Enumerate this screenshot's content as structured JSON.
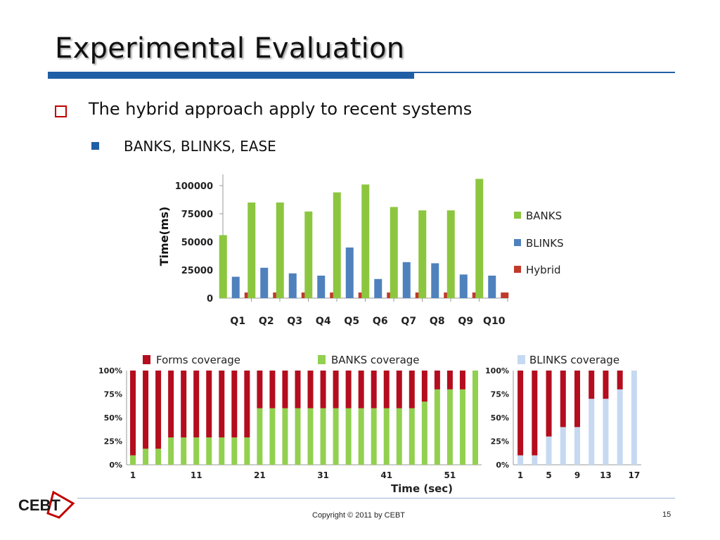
{
  "slide": {
    "title": "Experimental Evaluation",
    "bullet1": "The hybrid approach apply to recent systems",
    "bullet2": "BANKS, BLINKS, EASE",
    "logo_text": "CEBT",
    "copyright": "Copyright © 2011 by CEBT",
    "page_number": "15"
  },
  "colors": {
    "banks": "#8cc63f",
    "blinks": "#4f81bd",
    "hybrid": "#c0392b",
    "forms_coverage": "#b40d1e",
    "banks_coverage": "#92d050",
    "blinks_coverage": "#c6d9f1",
    "title_rule": "#1f5fa6"
  },
  "chart_data": [
    {
      "type": "bar",
      "ylabel": "Time(ms)",
      "ylim": [
        0,
        110000
      ],
      "yticks": [
        "0",
        "25000",
        "50000",
        "75000",
        "100000"
      ],
      "ytick_values": [
        0,
        25000,
        50000,
        75000,
        100000
      ],
      "categories": [
        "Q1",
        "Q2",
        "Q3",
        "Q4",
        "Q5",
        "Q6",
        "Q7",
        "Q8",
        "Q9",
        "Q10"
      ],
      "legend_position": "right",
      "series": [
        {
          "name": "BANKS",
          "values": [
            56000,
            85000,
            85000,
            77000,
            94000,
            101000,
            81000,
            78000,
            78000,
            106000
          ]
        },
        {
          "name": "BLINKS",
          "values": [
            19000,
            27000,
            22000,
            20000,
            45000,
            17000,
            32000,
            31000,
            21000,
            20000
          ]
        },
        {
          "name": "Hybrid",
          "values": [
            5000,
            5000,
            5000,
            5000,
            5000,
            5000,
            5000,
            5000,
            5000,
            5000
          ]
        }
      ]
    },
    {
      "type": "bar",
      "stacked": true,
      "xlabel": "Time (sec)",
      "ylim": [
        0,
        100
      ],
      "yticks": [
        "0%",
        "25%",
        "50%",
        "75%",
        "100%"
      ],
      "xticks": [
        "1",
        "11",
        "21",
        "31",
        "41",
        "51"
      ],
      "legend_position": "top",
      "series": [
        {
          "name": "Forms coverage",
          "complement_of": "BANKS coverage"
        },
        {
          "name": "BANKS coverage",
          "values": [
            10,
            17,
            17,
            29,
            29,
            29,
            29,
            29,
            29,
            29,
            60,
            60,
            60,
            60,
            60,
            60,
            60,
            60,
            60,
            60,
            60,
            60,
            60,
            67,
            80,
            80,
            80,
            100
          ]
        }
      ]
    },
    {
      "type": "bar",
      "stacked": true,
      "ylim": [
        0,
        100
      ],
      "yticks": [
        "0%",
        "25%",
        "50%",
        "75%",
        "100%"
      ],
      "xticks": [
        "1",
        "5",
        "9",
        "13",
        "17"
      ],
      "legend_position": "top",
      "series": [
        {
          "name": "BLINKS coverage",
          "values": [
            10,
            10,
            30,
            40,
            40,
            70,
            70,
            80,
            100
          ]
        }
      ]
    }
  ]
}
